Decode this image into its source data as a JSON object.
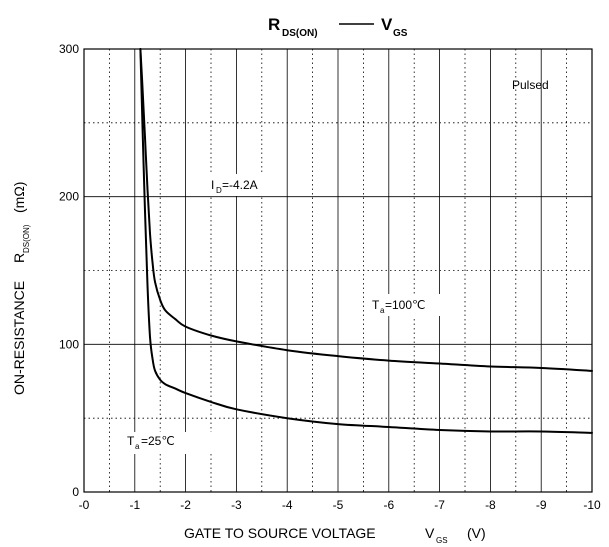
{
  "chart_data": {
    "type": "line",
    "title": {
      "left_main": "R",
      "left_sub": "DS(ON)",
      "right_main": "V",
      "right_sub": "GS"
    },
    "xlabel": {
      "main": "GATE TO SOURCE VOLTAGE",
      "var_main": "V",
      "var_sub": "GS",
      "unit": "(V)"
    },
    "ylabel": {
      "main": "ON-RESISTANCE",
      "var_main": "R",
      "var_sub": "DS(ON)",
      "unit": "(mΩ)"
    },
    "x_ticks": [
      "-0",
      "-1",
      "-2",
      "-3",
      "-4",
      "-5",
      "-6",
      "-7",
      "-8",
      "-9",
      "-10"
    ],
    "y_ticks": [
      "0",
      "100",
      "200",
      "300"
    ],
    "xlim": [
      0,
      -10
    ],
    "ylim": [
      0,
      300
    ],
    "grid": true,
    "annotations": {
      "pulsed": "Pulsed",
      "id_main": "I",
      "id_sub": "D",
      "id_value": "=-4.2A",
      "ta_hot_main": "T",
      "ta_hot_sub": "a",
      "ta_hot_value": "=100℃",
      "ta_cold_main": "T",
      "ta_cold_sub": "a",
      "ta_cold_value": "=25℃"
    },
    "series": [
      {
        "x": [
          -1.11,
          -1.15,
          -1.2,
          -1.25,
          -1.3,
          -1.35,
          -1.4,
          -1.5,
          -1.6,
          -1.8,
          -2.0,
          -2.5,
          -3.0,
          -4.0,
          -5.0,
          -6.0,
          -7.0,
          -8.0,
          -9.0,
          -10.0
        ],
        "y": [
          300,
          275,
          240,
          205,
          175,
          155,
          142,
          130,
          123,
          117,
          112,
          106,
          102,
          96,
          92,
          89,
          87,
          85,
          84,
          82
        ]
      },
      {
        "x": [
          -1.11,
          -1.15,
          -1.2,
          -1.25,
          -1.3,
          -1.35,
          -1.4,
          -1.5,
          -1.6,
          -1.8,
          -2.0,
          -2.5,
          -3.0,
          -4.0,
          -5.0,
          -6.0,
          -7.0,
          -8.0,
          -9.0,
          -10.0
        ],
        "y": [
          300,
          250,
          190,
          140,
          105,
          90,
          82,
          76,
          73,
          70,
          67,
          61,
          56,
          50,
          46,
          44,
          42,
          41,
          41,
          40
        ]
      }
    ]
  }
}
